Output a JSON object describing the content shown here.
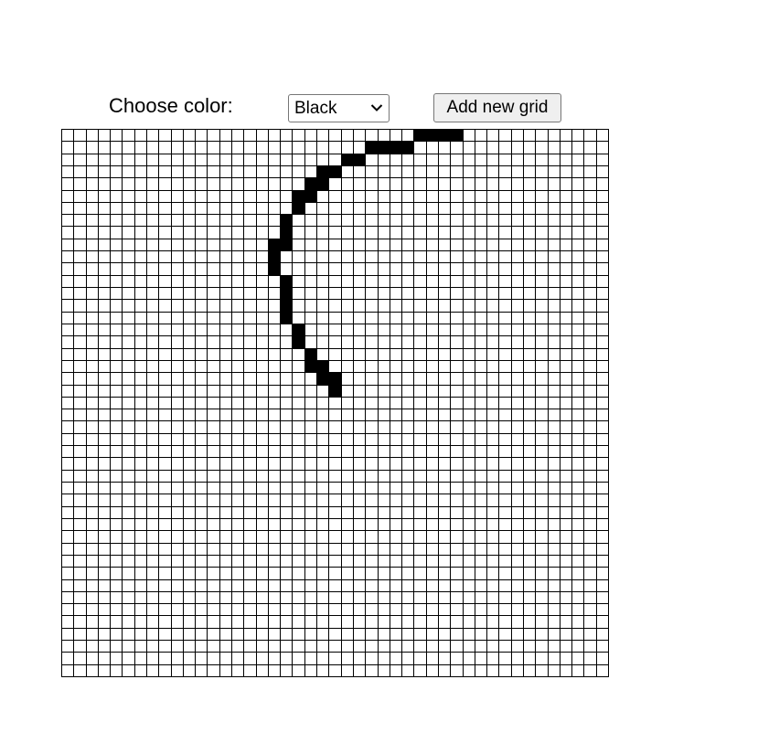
{
  "toolbar": {
    "choose_color_label": "Choose color:",
    "color_select": {
      "selected": "Black",
      "options": [
        "Black"
      ]
    },
    "add_grid_label": "Add new grid"
  },
  "grid": {
    "rows": 45,
    "cols": 45,
    "cell_color": "#ffffff",
    "line_color": "#000000",
    "paint_color": "#000000",
    "filled_cells": [
      [
        0,
        29
      ],
      [
        0,
        30
      ],
      [
        0,
        31
      ],
      [
        0,
        32
      ],
      [
        1,
        25
      ],
      [
        1,
        26
      ],
      [
        1,
        27
      ],
      [
        1,
        28
      ],
      [
        2,
        23
      ],
      [
        2,
        24
      ],
      [
        3,
        21
      ],
      [
        3,
        22
      ],
      [
        4,
        20
      ],
      [
        4,
        21
      ],
      [
        5,
        19
      ],
      [
        5,
        20
      ],
      [
        6,
        19
      ],
      [
        7,
        18
      ],
      [
        8,
        18
      ],
      [
        9,
        17
      ],
      [
        9,
        18
      ],
      [
        10,
        17
      ],
      [
        11,
        17
      ],
      [
        12,
        18
      ],
      [
        13,
        18
      ],
      [
        14,
        18
      ],
      [
        15,
        18
      ],
      [
        16,
        19
      ],
      [
        17,
        19
      ],
      [
        18,
        20
      ],
      [
        19,
        20
      ],
      [
        19,
        21
      ],
      [
        20,
        21
      ],
      [
        20,
        22
      ],
      [
        21,
        22
      ]
    ]
  }
}
